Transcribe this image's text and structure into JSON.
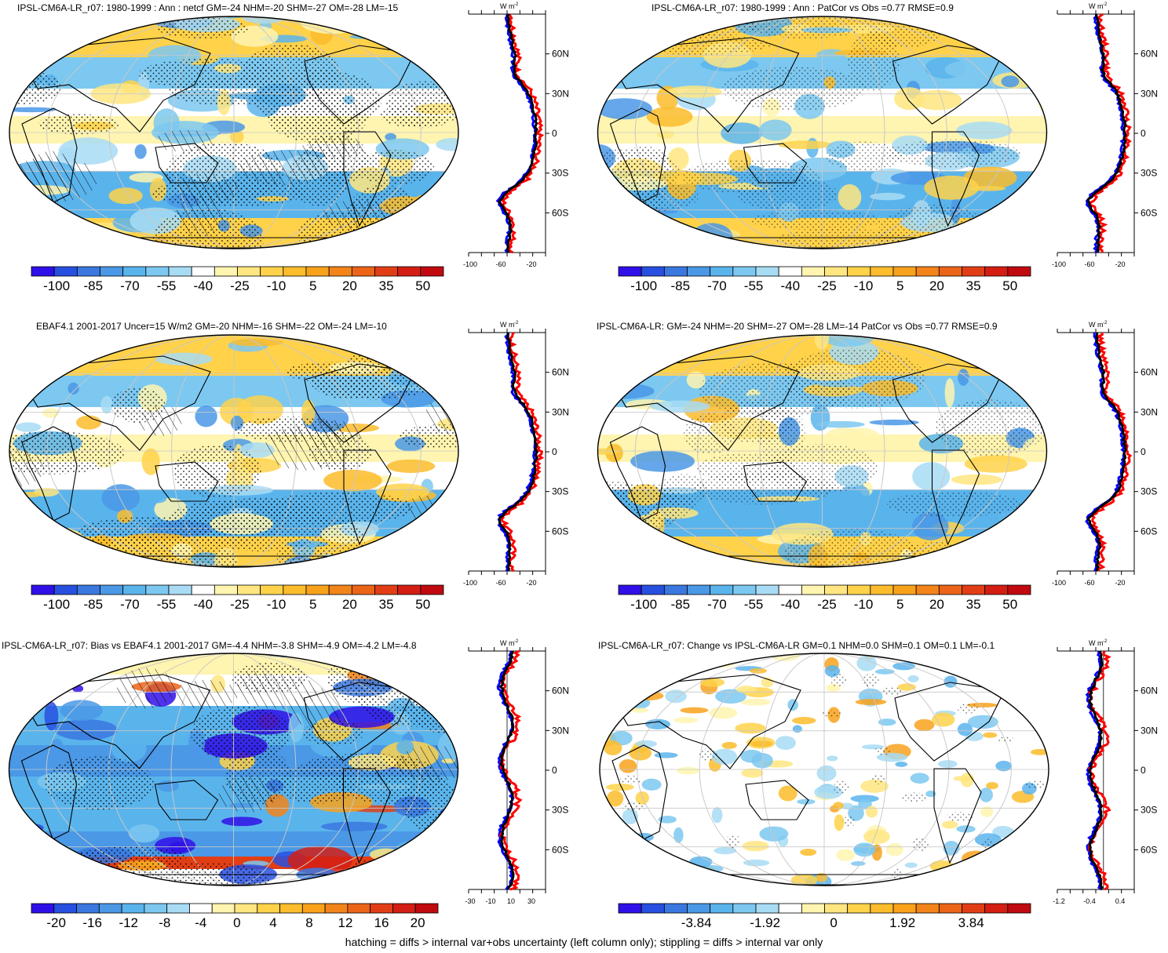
{
  "panels": [
    {
      "id": "p1",
      "title": "IPSL-CM6A-LR_r07: 1980-1999 : Ann : netcf GM=-24 NHM=-20 SHM=-27 OM=-28 LM=-15",
      "zonal_unit": "W m",
      "zonal_unit_exp": "-2",
      "lat_labels": [
        "60N",
        "30N",
        "0",
        "30S",
        "60S"
      ],
      "zonal_ticks": [
        "-100",
        "-60",
        "-20"
      ],
      "colorbar_labels": [
        "-100",
        "-85",
        "-70",
        "-55",
        "-40",
        "-25",
        "-10",
        "5",
        "20",
        "35",
        "50"
      ],
      "hatched": true,
      "stippled": true,
      "palette": "main"
    },
    {
      "id": "p2",
      "title": "IPSL-CM6A-LR_r07: 1980-1999 : Ann : PatCor vs Obs =0.77 RMSE=0.9",
      "zonal_unit": "W m",
      "zonal_unit_exp": "-2",
      "lat_labels": [
        "60N",
        "30N",
        "0",
        "30S",
        "60S"
      ],
      "zonal_ticks": [
        "-100",
        "-60",
        "-20"
      ],
      "colorbar_labels": [
        "-100",
        "-85",
        "-70",
        "-55",
        "-40",
        "-25",
        "-10",
        "5",
        "20",
        "35",
        "50"
      ],
      "hatched": false,
      "stippled": true,
      "palette": "main"
    },
    {
      "id": "p3",
      "title": "EBAF4.1 2001-2017 Uncer=15 W/m2 GM=-20 NHM=-16 SHM=-22 OM=-24 LM=-10",
      "zonal_unit": "W m",
      "zonal_unit_exp": "-2",
      "lat_labels": [
        "60N",
        "30N",
        "0",
        "30S",
        "60S"
      ],
      "zonal_ticks": [
        "-100",
        "-60",
        "-20"
      ],
      "colorbar_labels": [
        "-100",
        "-85",
        "-70",
        "-55",
        "-40",
        "-25",
        "-10",
        "5",
        "20",
        "35",
        "50"
      ],
      "hatched": true,
      "stippled": true,
      "palette": "main"
    },
    {
      "id": "p4",
      "title": "IPSL-CM6A-LR: GM=-24 NHM=-20 SHM=-27 OM=-28 LM=-14 PatCor vs Obs =0.77 RMSE=0.9",
      "zonal_unit": "W m",
      "zonal_unit_exp": "-2",
      "lat_labels": [
        "60N",
        "30N",
        "0",
        "30S",
        "60S"
      ],
      "zonal_ticks": [
        "-100",
        "-60",
        "-20"
      ],
      "colorbar_labels": [
        "-100",
        "-85",
        "-70",
        "-55",
        "-40",
        "-25",
        "-10",
        "5",
        "20",
        "35",
        "50"
      ],
      "hatched": false,
      "stippled": true,
      "palette": "main"
    },
    {
      "id": "p5",
      "title": "IPSL-CM6A-LR_r07: Bias vs EBAF4.1 2001-2017 GM=-4.4 NHM=-3.8 SHM=-4.9 OM=-4.2 LM=-4.8",
      "zonal_unit": "W m",
      "zonal_unit_exp": "-2",
      "lat_labels": [
        "60N",
        "30N",
        "0",
        "30S",
        "60S"
      ],
      "zonal_ticks": [
        "-30",
        "-10",
        "10",
        "30"
      ],
      "colorbar_labels": [
        "-20",
        "-16",
        "-12",
        "-8",
        "-4",
        "0",
        "4",
        "8",
        "12",
        "16",
        "20"
      ],
      "hatched": true,
      "stippled": true,
      "palette": "bias"
    },
    {
      "id": "p6",
      "title": "IPSL-CM6A-LR_r07: Change vs IPSL-CM6A-LR GM=0.1 NHM=0.0 SHM=0.1 OM=0.1 LM=-0.1",
      "zonal_unit": "W m",
      "zonal_unit_exp": "-2",
      "lat_labels": [
        "60N",
        "30N",
        "0",
        "30S",
        "60S"
      ],
      "zonal_ticks": [
        "-1.2",
        "-0.4",
        "0.4"
      ],
      "colorbar_labels": [
        "-3.84",
        "-1.92",
        "0",
        "1.92",
        "3.84"
      ],
      "hatched": false,
      "stippled": true,
      "palette": "change"
    }
  ],
  "palettes": {
    "main": [
      "#3010e8",
      "#2850e0",
      "#3a78e0",
      "#4a98e6",
      "#5ab4ec",
      "#7cc8f0",
      "#a8dcf4",
      "#ffffff",
      "#fff4b0",
      "#ffe680",
      "#ffd24a",
      "#fcbc2c",
      "#f8a21c",
      "#f2841a",
      "#ec6418",
      "#e23e16",
      "#d41e14",
      "#c00a10"
    ],
    "bias": [
      "#3010e8",
      "#2850e0",
      "#3a78e0",
      "#4a98e6",
      "#5ab4ec",
      "#7cc8f0",
      "#a8dcf4",
      "#ffffff",
      "#fff4b0",
      "#ffe680",
      "#ffd24a",
      "#fcbc2c",
      "#f8a21c",
      "#f2841a",
      "#ec6418",
      "#e23e16",
      "#d41e14",
      "#c00a10"
    ],
    "change": [
      "#3010e8",
      "#2850e0",
      "#3a78e0",
      "#4a98e6",
      "#5ab4ec",
      "#7cc8f0",
      "#a8dcf4",
      "#ffffff",
      "#fff4b0",
      "#ffe680",
      "#ffd24a",
      "#fcbc2c",
      "#f8a21c",
      "#f2841a",
      "#ec6418",
      "#e23e16",
      "#d41e14",
      "#c00a10"
    ]
  },
  "zonal_colors": {
    "model": "#ff0000",
    "obs": "#0000ff",
    "mean": "#000000"
  },
  "footer": "hatching = diffs > internal var+obs uncertainty (left column only); stippling = diffs > internal var only"
}
